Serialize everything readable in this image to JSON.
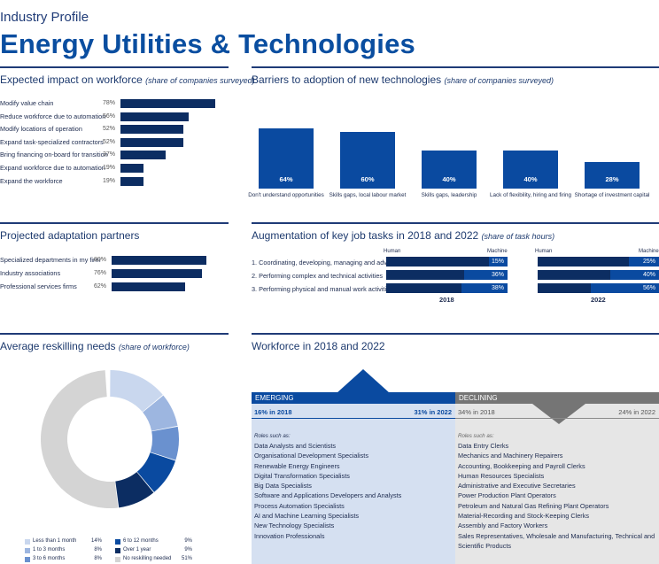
{
  "header": {
    "subtitle": "Industry Profile",
    "title": "Energy Utilities & Technologies"
  },
  "impact": {
    "title": "Expected impact on workforce",
    "note": "(share of companies surveyed)",
    "items": [
      {
        "label": "Modify value chain",
        "pct": "78%",
        "value": 78
      },
      {
        "label": "Reduce workforce due to automation",
        "pct": "56%",
        "value": 56
      },
      {
        "label": "Modify locations of operation",
        "pct": "52%",
        "value": 52
      },
      {
        "label": "Expand task-specialized contractors",
        "pct": "52%",
        "value": 52
      },
      {
        "label": "Bring financing on-board for transition",
        "pct": "37%",
        "value": 37
      },
      {
        "label": "Expand workforce due to automation",
        "pct": "19%",
        "value": 19
      },
      {
        "label": "Expand the workforce",
        "pct": "19%",
        "value": 19
      }
    ]
  },
  "barriers": {
    "title": "Barriers to adoption of new technologies",
    "note": "(share of companies surveyed)",
    "items": [
      {
        "label": "Don't understand opportunities",
        "pct": "64%",
        "value": 64
      },
      {
        "label": "Skills gaps, local labour market",
        "pct": "60%",
        "value": 60
      },
      {
        "label": "Skills gaps, leadership",
        "pct": "40%",
        "value": 40
      },
      {
        "label": "Lack of flexibility, hiring and firing",
        "pct": "40%",
        "value": 40
      },
      {
        "label": "Shortage of investment capital",
        "pct": "28%",
        "value": 28
      }
    ]
  },
  "partners": {
    "title": "Projected adaptation partners",
    "items": [
      {
        "label": "Specialized departments in my firm",
        "pct": "80%",
        "value": 80
      },
      {
        "label": "Industry associations",
        "pct": "76%",
        "value": 76
      },
      {
        "label": "Professional services firms",
        "pct": "62%",
        "value": 62
      }
    ]
  },
  "augmentation": {
    "title": "Augmentation of key job tasks in 2018 and 2022",
    "note": "(share of task hours)",
    "human_label": "Human",
    "machine_label": "Machine",
    "year_a": "2018",
    "year_b": "2022",
    "tasks": [
      {
        "label": "1.  Coordinating, developing, managing and advising",
        "m2018": 15,
        "p2018": "15%",
        "m2022": 25,
        "p2022": "25%"
      },
      {
        "label": "2.  Performing complex and technical activities",
        "m2018": 36,
        "p2018": "36%",
        "m2022": 40,
        "p2022": "40%"
      },
      {
        "label": "3.  Performing physical and manual work activities",
        "m2018": 38,
        "p2018": "38%",
        "m2022": 56,
        "p2022": "56%"
      }
    ]
  },
  "reskilling": {
    "title": "Average reskilling needs",
    "note": "(share of workforce)",
    "segments": [
      {
        "label": "Less than 1 month",
        "value": 14,
        "pct": "14%",
        "color": "#c9d7ee"
      },
      {
        "label": "1 to 3 months",
        "value": 8,
        "pct": "8%",
        "color": "#9db6e0"
      },
      {
        "label": "3 to 6 months",
        "value": 8,
        "pct": "8%",
        "color": "#6a91cf"
      },
      {
        "label": "6 to 12 months",
        "value": 9,
        "pct": "9%",
        "color": "#0a4aa0"
      },
      {
        "label": "Over 1 year",
        "value": 9,
        "pct": "9%",
        "color": "#0c2d62"
      },
      {
        "label": "No reskilling needed",
        "value": 51,
        "pct": "51%",
        "color": "#d4d4d4"
      }
    ]
  },
  "workforce": {
    "title": "Workforce in 2018 and 2022",
    "emerging": {
      "label": "EMERGING",
      "share_2018": "16% in 2018",
      "share_2022": "31% in 2022",
      "roles_label": "Roles such as:",
      "roles": [
        "Data Analysts and Scientists",
        "Organisational Development Specialists",
        "Renewable Energy Engineers",
        "Digital Transformation Specialists",
        "Big Data Specialists",
        "Software and Applications Developers and Analysts",
        "Process Automation Specialists",
        "AI and Machine Learning Specialists",
        "New Technology Specialists",
        "Innovation Professionals"
      ]
    },
    "declining": {
      "label": "DECLINING",
      "share_2018": "34% in 2018",
      "share_2022": "24% in 2022",
      "roles_label": "Roles such as:",
      "roles": [
        "Data Entry Clerks",
        "Mechanics and Machinery Repairers",
        "Accounting,  Bookkeeping and Payroll Clerks",
        "Human Resources Specialists",
        "Administrative and Executive Secretaries",
        "Power Production Plant Operators",
        "Petroleum and Natural Gas Refining Plant Operators",
        "Material-Recording and Stock-Keeping Clerks",
        "Assembly and Factory Workers",
        "Sales Representatives, Wholesale and Manufacturing, Technical and Scientific Products"
      ]
    }
  },
  "colors": {
    "navy": "#0c2d62",
    "blue": "#0a4aa0",
    "emerging_bg": "#d5e0f1",
    "declining_bg": "#e6e6e6",
    "declining_bar": "#757575"
  }
}
